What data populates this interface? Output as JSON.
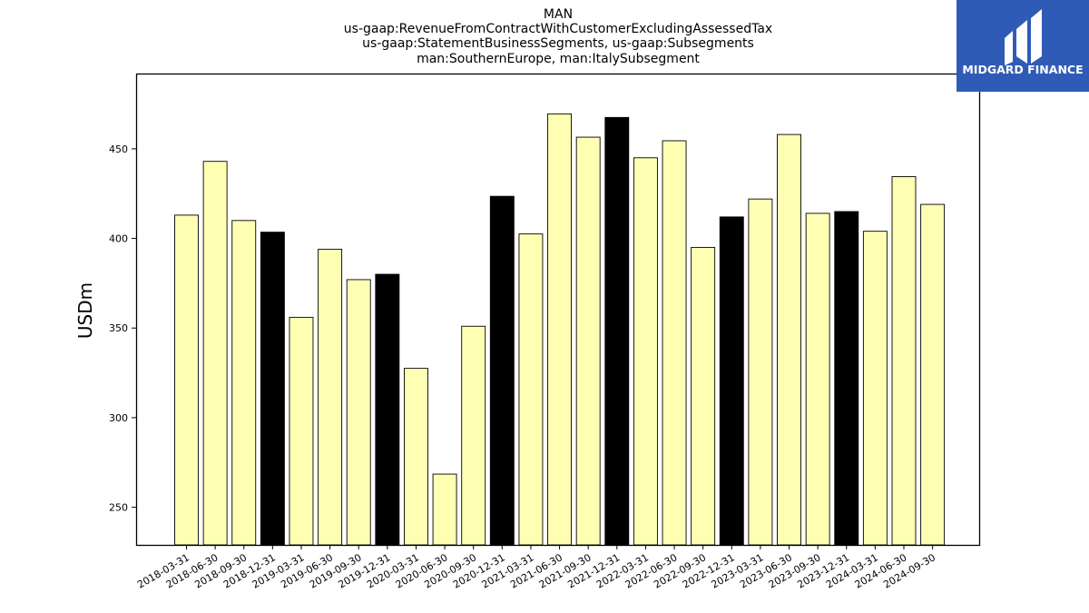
{
  "logo": {
    "text": "MIDGARD FINANCE",
    "bg_color": "#2f5bb7"
  },
  "chart_data": {
    "type": "bar",
    "title_lines": [
      "MAN",
      "us-gaap:RevenueFromContractWithCustomerExcludingAssessedTax",
      "us-gaap:StatementBusinessSegments, us-gaap:Subsegments",
      "man:SouthernEurope, man:ItalySubsegment"
    ],
    "xlabel": "",
    "ylabel": "USDm",
    "ylim": [
      229,
      492
    ],
    "yticks": [
      250,
      300,
      350,
      400,
      450
    ],
    "grid": false,
    "colors": {
      "quarter": "#ffffb3",
      "year_end": "#000000",
      "edge": "#000000"
    },
    "categories": [
      "2018-03-31",
      "2018-06-30",
      "2018-09-30",
      "2018-12-31",
      "2019-03-31",
      "2019-06-30",
      "2019-09-30",
      "2019-12-31",
      "2020-03-31",
      "2020-06-30",
      "2020-09-30",
      "2020-12-31",
      "2021-03-31",
      "2021-06-30",
      "2021-09-30",
      "2021-12-31",
      "2022-03-31",
      "2022-06-30",
      "2022-09-30",
      "2022-12-31",
      "2023-03-31",
      "2023-06-30",
      "2023-09-30",
      "2023-12-31",
      "2024-03-31",
      "2024-06-30",
      "2024-09-30"
    ],
    "values": [
      413,
      443,
      410,
      403.5,
      356,
      394,
      377,
      380,
      327.5,
      268.5,
      351,
      423.5,
      402.5,
      469.5,
      456.5,
      467.5,
      445,
      454.5,
      395,
      412,
      422,
      458,
      414,
      415,
      404,
      434.5,
      419
    ],
    "year_end": [
      false,
      false,
      false,
      true,
      false,
      false,
      false,
      true,
      false,
      false,
      false,
      true,
      false,
      false,
      false,
      true,
      false,
      false,
      false,
      true,
      false,
      false,
      false,
      true,
      false,
      false,
      false
    ]
  }
}
